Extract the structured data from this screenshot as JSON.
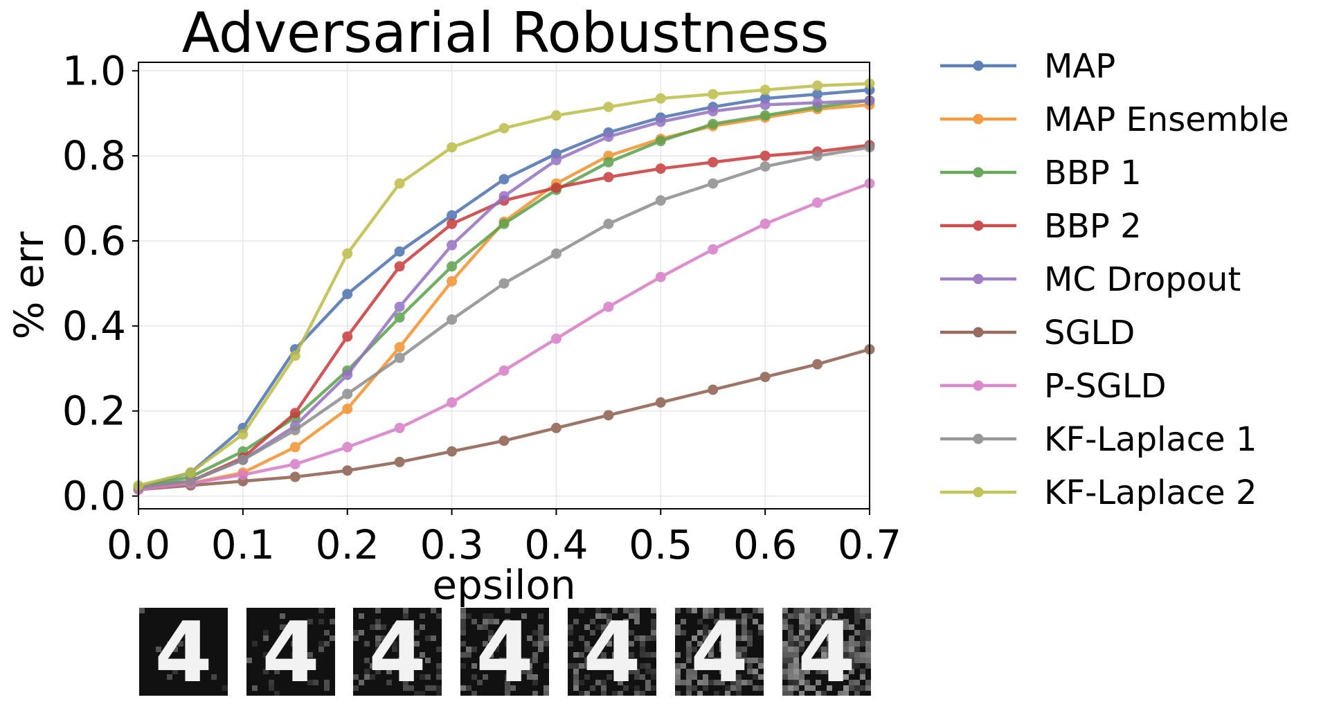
{
  "chart_data": {
    "type": "line",
    "title": "Adversarial Robustness",
    "xlabel": "epsilon",
    "ylabel": "% err",
    "xlim": [
      0.0,
      0.7
    ],
    "ylim": [
      -0.03,
      1.02
    ],
    "xticks": [
      "0.0",
      "0.1",
      "0.2",
      "0.3",
      "0.4",
      "0.5",
      "0.6",
      "0.7"
    ],
    "yticks": [
      "0.0",
      "0.2",
      "0.4",
      "0.6",
      "0.8",
      "1.0"
    ],
    "grid": true,
    "legend_position": "right, outside plot",
    "x": [
      0.0,
      0.05,
      0.1,
      0.15,
      0.2,
      0.25,
      0.3,
      0.35,
      0.4,
      0.45,
      0.5,
      0.55,
      0.6,
      0.65,
      0.7
    ],
    "series": [
      {
        "name": "MAP",
        "color": "#4c72b0",
        "values": [
          0.02,
          0.055,
          0.16,
          0.345,
          0.475,
          0.575,
          0.66,
          0.745,
          0.805,
          0.855,
          0.89,
          0.915,
          0.935,
          0.945,
          0.955
        ]
      },
      {
        "name": "MAP Ensemble",
        "color": "#f0912f",
        "values": [
          0.015,
          0.03,
          0.055,
          0.115,
          0.205,
          0.35,
          0.505,
          0.645,
          0.735,
          0.8,
          0.84,
          0.87,
          0.89,
          0.91,
          0.92
        ]
      },
      {
        "name": "BBP 1",
        "color": "#5aa04c",
        "values": [
          0.02,
          0.045,
          0.105,
          0.185,
          0.295,
          0.42,
          0.54,
          0.64,
          0.72,
          0.785,
          0.835,
          0.875,
          0.895,
          0.915,
          0.93
        ]
      },
      {
        "name": "BBP 2",
        "color": "#c73a3a",
        "values": [
          0.02,
          0.035,
          0.09,
          0.195,
          0.375,
          0.54,
          0.64,
          0.695,
          0.725,
          0.75,
          0.77,
          0.785,
          0.8,
          0.81,
          0.825
        ]
      },
      {
        "name": "MC Dropout",
        "color": "#9372c0",
        "values": [
          0.02,
          0.035,
          0.085,
          0.165,
          0.285,
          0.445,
          0.59,
          0.705,
          0.79,
          0.845,
          0.88,
          0.905,
          0.92,
          0.925,
          0.93
        ]
      },
      {
        "name": "SGLD",
        "color": "#8c5d4d",
        "values": [
          0.015,
          0.025,
          0.035,
          0.045,
          0.06,
          0.08,
          0.105,
          0.13,
          0.16,
          0.19,
          0.22,
          0.25,
          0.28,
          0.31,
          0.345
        ]
      },
      {
        "name": "P-SGLD",
        "color": "#d77cc6",
        "values": [
          0.015,
          0.03,
          0.05,
          0.075,
          0.115,
          0.16,
          0.22,
          0.295,
          0.37,
          0.445,
          0.515,
          0.58,
          0.64,
          0.69,
          0.735
        ]
      },
      {
        "name": "KF-Laplace 1",
        "color": "#8c8c8c",
        "values": [
          0.02,
          0.035,
          0.085,
          0.155,
          0.24,
          0.325,
          0.415,
          0.5,
          0.57,
          0.64,
          0.695,
          0.735,
          0.775,
          0.8,
          0.82
        ]
      },
      {
        "name": "KF-Laplace 2",
        "color": "#bcbd47",
        "values": [
          0.025,
          0.055,
          0.145,
          0.33,
          0.57,
          0.735,
          0.82,
          0.865,
          0.895,
          0.915,
          0.935,
          0.945,
          0.955,
          0.965,
          0.97
        ]
      }
    ]
  },
  "digit_samples": {
    "glyph": "4",
    "noise_levels": [
      0.05,
      0.15,
      0.25,
      0.35,
      0.45,
      0.55,
      0.65
    ]
  }
}
